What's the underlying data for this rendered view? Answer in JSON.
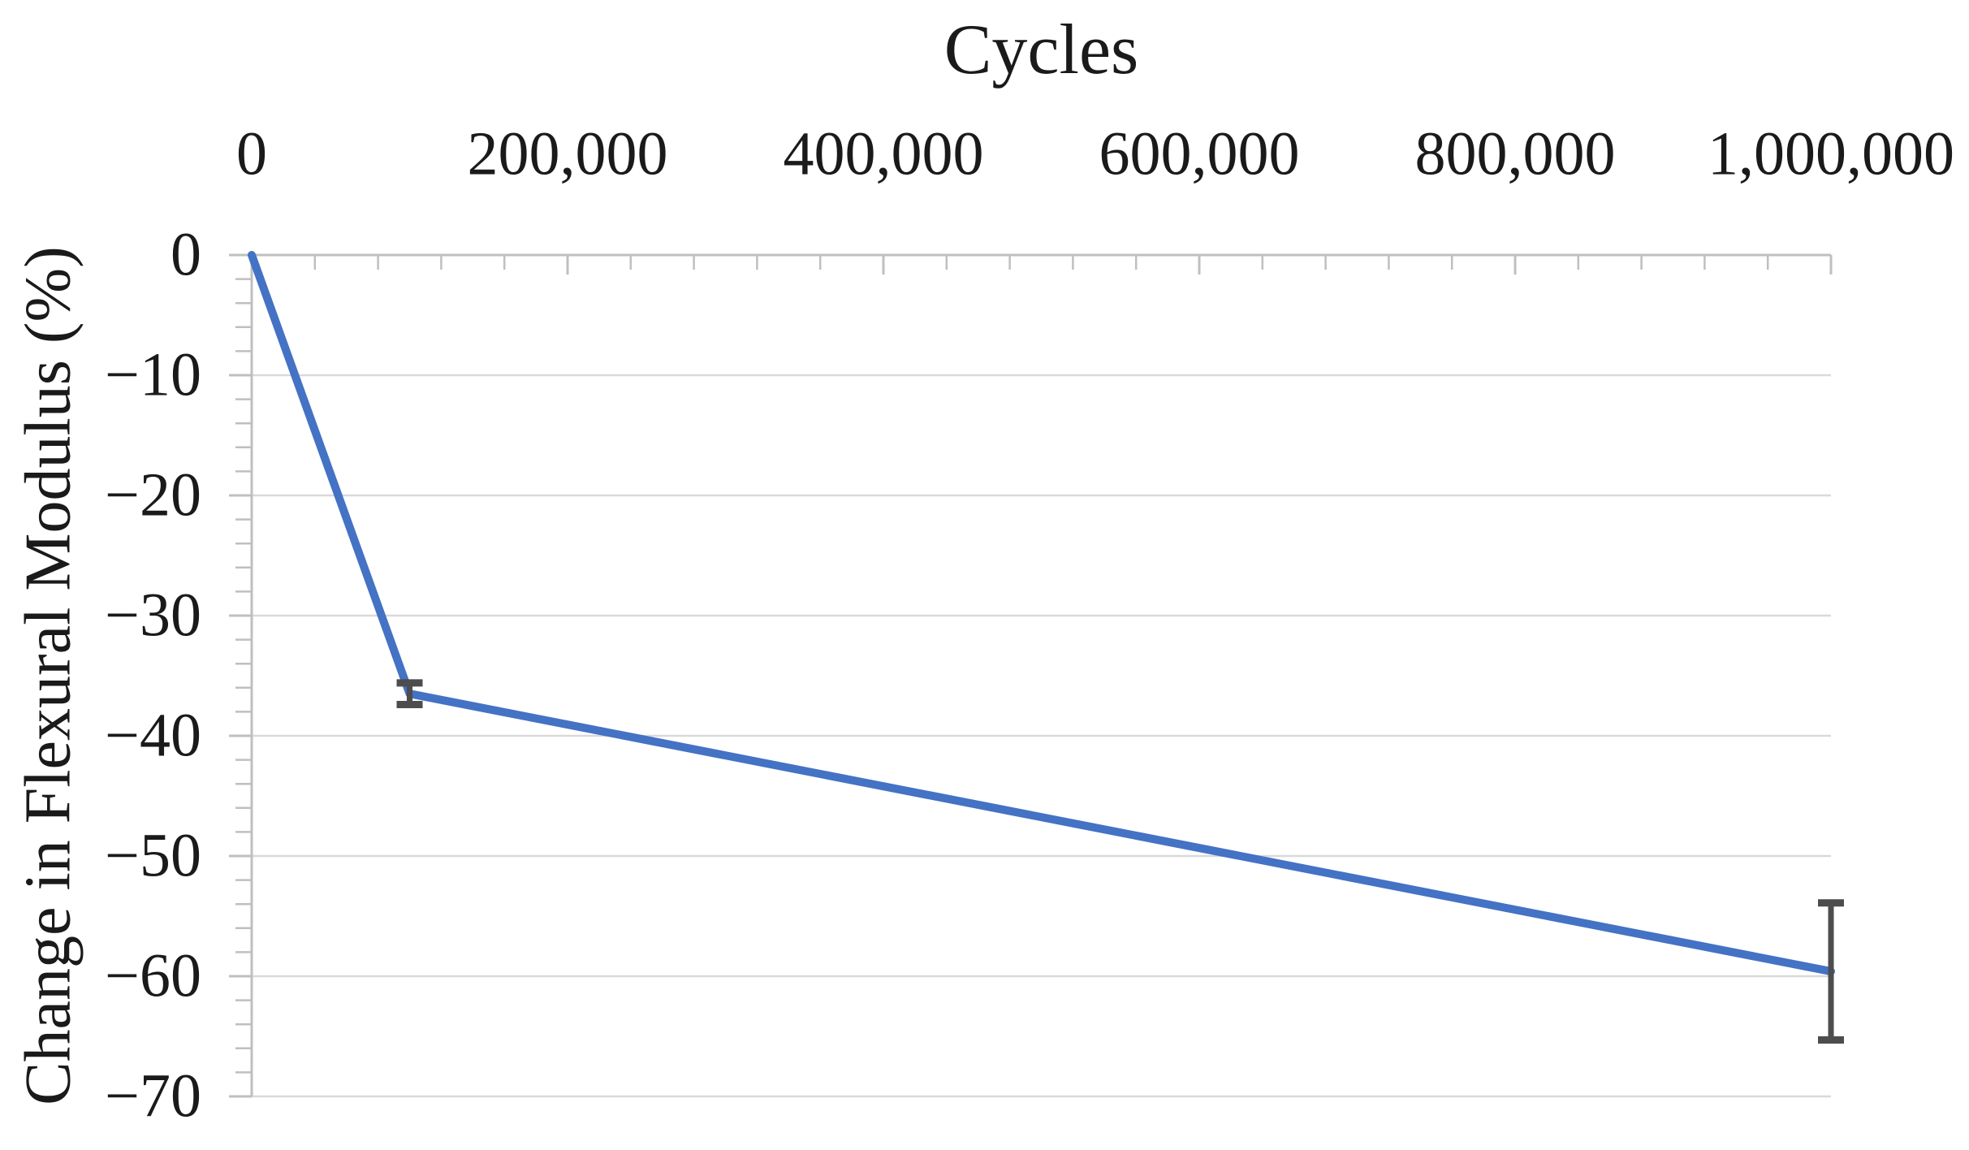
{
  "chart_data": {
    "type": "line",
    "title": "",
    "xlabel": "Cycles",
    "ylabel": "Change in Flexural Modulus (%)",
    "legend": "none",
    "grid": "horizontal-major",
    "x_axis": {
      "position": "top",
      "min": 0,
      "max": 1000000,
      "major_tick": 200000,
      "minor_tick": 40000,
      "tick_labels": [
        "0",
        "200,000",
        "400,000",
        "600,000",
        "800,000",
        "1,000,000"
      ]
    },
    "y_axis": {
      "position": "left",
      "min": -70,
      "max": 0,
      "major_tick": 10,
      "minor_tick": 2,
      "tick_labels": [
        "0",
        "−10",
        "−20",
        "−30",
        "−40",
        "−50",
        "−60",
        "−70"
      ]
    },
    "series": [
      {
        "color": "#4472C4",
        "marker": "none",
        "points": [
          {
            "x": 0,
            "y": 0,
            "error": 0
          },
          {
            "x": 100000,
            "y": -36.5,
            "error": 0.9
          },
          {
            "x": 1000000,
            "y": -59.6,
            "error": 5.7
          }
        ]
      }
    ],
    "colors": {
      "series_line": "#4472C4",
      "error_bar": "#4d4d4d",
      "gridline": "#d9d9d9",
      "axis": "#bfbfbf",
      "text": "#1a1a1a",
      "background": "#ffffff"
    }
  }
}
